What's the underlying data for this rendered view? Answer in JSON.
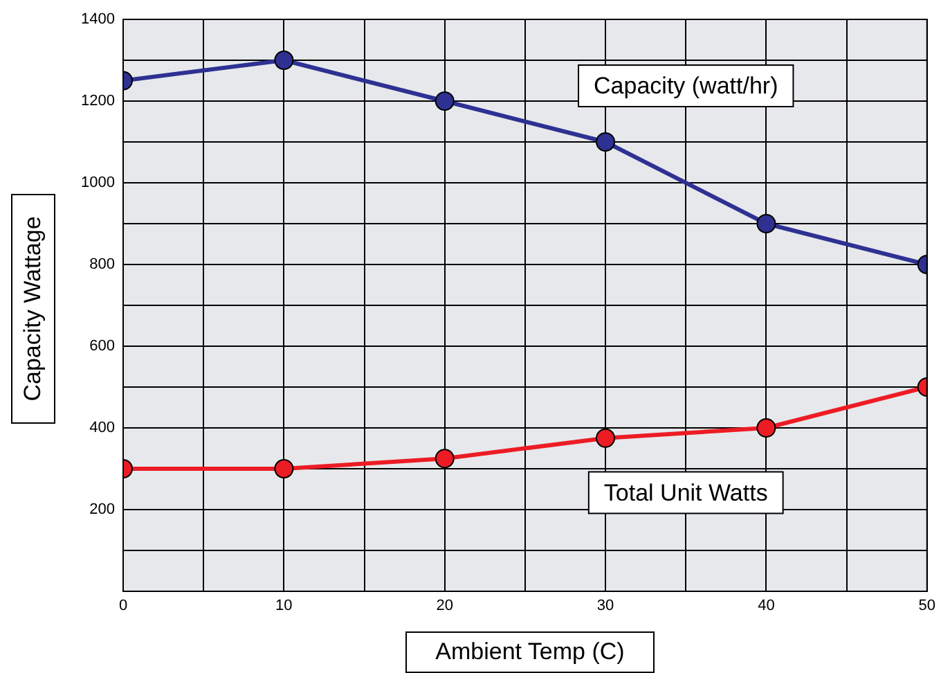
{
  "chart_data": {
    "type": "line",
    "xlabel": "Ambient Temp (C)",
    "ylabel": "Capacity Wattage",
    "x": [
      0,
      10,
      20,
      30,
      40,
      50
    ],
    "series": [
      {
        "name": "Capacity (watt/hr)",
        "color": "#2e3192",
        "values": [
          1250,
          1300,
          1200,
          1100,
          900,
          800
        ]
      },
      {
        "name": "Total Unit Watts",
        "color": "#ed1c24",
        "values": [
          300,
          300,
          325,
          375,
          400,
          500
        ]
      }
    ],
    "xlim": [
      0,
      50
    ],
    "xticks": [
      0,
      {
        "value": 5,
        "label": null
      },
      10,
      {
        "value": 15,
        "label": null
      },
      20,
      {
        "value": 25,
        "label": null
      },
      30,
      {
        "value": 35,
        "label": null
      },
      40,
      {
        "value": 45,
        "label": null
      },
      50
    ],
    "ylim": [
      0,
      1400
    ],
    "yticks": [
      {
        "value": 0,
        "label": null
      },
      {
        "value": 100,
        "label": null
      },
      200,
      {
        "value": 300,
        "label": null
      },
      400,
      {
        "value": 500,
        "label": null
      },
      600,
      {
        "value": 700,
        "label": null
      },
      800,
      {
        "value": 900,
        "label": null
      },
      1000,
      {
        "value": 1100,
        "label": null
      },
      1200,
      {
        "value": 1300,
        "label": null
      },
      1400
    ],
    "grid": true,
    "legend": false,
    "marker": "circle",
    "line_style": "solid"
  }
}
